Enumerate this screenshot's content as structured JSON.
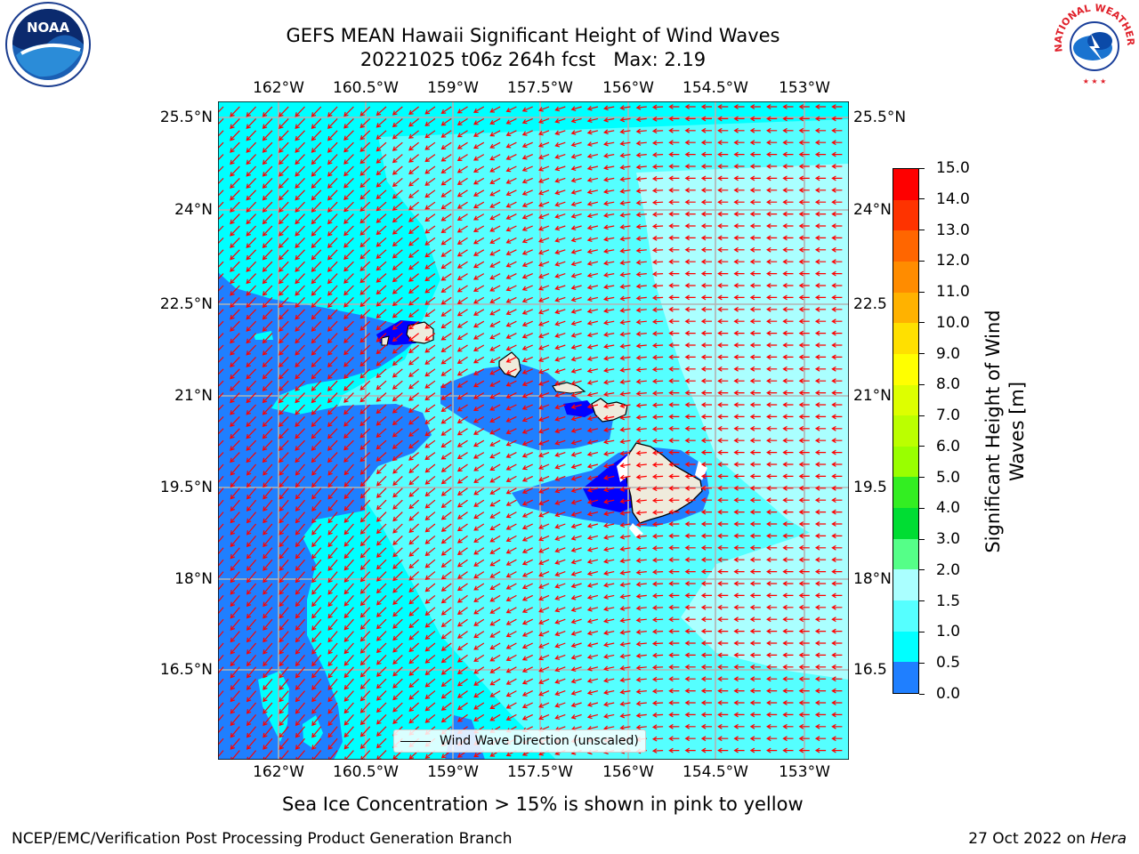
{
  "title": {
    "line1": "GEFS MEAN Hawaii Significant Height of Wind Waves",
    "line2": "20221025 t06z 264h fcst   Max: 2.19"
  },
  "map": {
    "lon_labels": [
      "162°W",
      "160.5°W",
      "159°W",
      "157.5°W",
      "156°W",
      "154.5°W",
      "153°W"
    ],
    "lat_labels": [
      "25.5°N",
      "24°N",
      "22.5°N",
      "21°N",
      "19.5°N",
      "18°N",
      "16.5°N"
    ],
    "right_lat_labels": [
      "25.5°N",
      "24°N",
      "22.5",
      "21°N",
      "19.5",
      "18°N",
      "16.5"
    ],
    "lon_range": [
      "163°W",
      "152.2°W"
    ],
    "lat_range": [
      "15.4°N",
      "25.7°N"
    ],
    "arrow_color": "#ff0000",
    "land_color": "#efebdc",
    "islands": [
      "Kauai",
      "Oahu",
      "Molokai",
      "Maui",
      "Hawaii"
    ],
    "legend": "Wind Wave Direction (unscaled)"
  },
  "colorbar": {
    "label_line1": "Significant Height of Wind",
    "label_line2": "Waves [m]",
    "ticks": [
      "15.0",
      "14.0",
      "13.0",
      "12.0",
      "11.0",
      "10.0",
      "9.0",
      "8.0",
      "7.0",
      "6.0",
      "5.0",
      "4.0",
      "3.0",
      "2.0",
      "1.5",
      "1.0",
      "0.5",
      "0.0"
    ],
    "colors": [
      "#fe0000",
      "#fe3300",
      "#ff6600",
      "#ff8c00",
      "#ffb200",
      "#ffe000",
      "#ffff00",
      "#ddff00",
      "#bbff00",
      "#99ff00",
      "#33ee22",
      "#00dd33",
      "#55ff88",
      "#aaffff",
      "#55ffff",
      "#00ffff",
      "#1f7fff",
      "#0000ff"
    ]
  },
  "note": "Sea Ice Concentration > 15% is shown in pink to yellow",
  "footer": {
    "left": "NCEP/EMC/Verification Post Processing Product Generation Branch",
    "right_date": "27 Oct 2022 on ",
    "right_host": "Hera"
  },
  "logos": {
    "left": "NOAA",
    "right": "NATIONAL WEATHER SERVICE"
  }
}
